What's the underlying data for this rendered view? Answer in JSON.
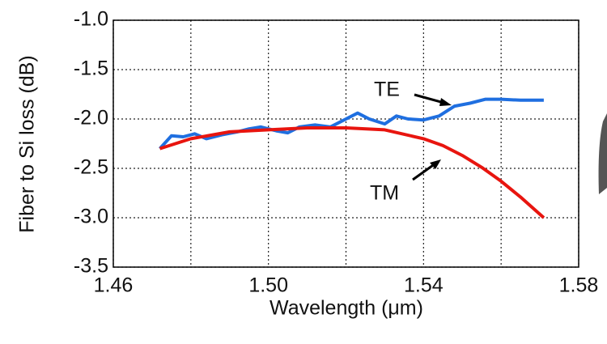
{
  "chart_data": {
    "type": "line",
    "xlabel": "Wavelength (μm)",
    "ylabel": "Fiber to Si loss (dB)",
    "xlim": [
      1.46,
      1.58
    ],
    "ylim": [
      -3.5,
      -1.0
    ],
    "xticks": [
      1.46,
      {
        "value": 1.5,
        "label": "1.50"
      },
      1.54,
      1.58
    ],
    "xgrid": [
      1.48,
      1.52,
      1.56
    ],
    "yticks": [
      {
        "value": -3.5,
        "label": "-3.5"
      },
      {
        "value": -3.0,
        "label": "-3.0"
      },
      {
        "value": -2.5,
        "label": "-2.5"
      },
      {
        "value": -2.0,
        "label": "-2.0"
      },
      {
        "value": -1.5,
        "label": "-1.5"
      },
      {
        "value": -1.0,
        "label": "-1.0"
      }
    ],
    "grid": true,
    "series": [
      {
        "name": "TE",
        "color": "#1f6fe0",
        "x": [
          1.472,
          1.475,
          1.478,
          1.481,
          1.484,
          1.488,
          1.492,
          1.495,
          1.498,
          1.502,
          1.505,
          1.508,
          1.512,
          1.516,
          1.52,
          1.523,
          1.526,
          1.53,
          1.533,
          1.536,
          1.54,
          1.544,
          1.548,
          1.552,
          1.556,
          1.56,
          1.565,
          1.571
        ],
        "values": [
          -2.3,
          -2.17,
          -2.18,
          -2.15,
          -2.2,
          -2.16,
          -2.13,
          -2.1,
          -2.08,
          -2.12,
          -2.14,
          -2.08,
          -2.06,
          -2.08,
          -2.0,
          -1.94,
          -2.0,
          -2.05,
          -1.97,
          -2.0,
          -2.01,
          -1.97,
          -1.87,
          -1.84,
          -1.8,
          -1.8,
          -1.81,
          -1.81
        ]
      },
      {
        "name": "TM",
        "color": "#e8150f",
        "x": [
          1.472,
          1.48,
          1.49,
          1.5,
          1.51,
          1.52,
          1.53,
          1.54,
          1.545,
          1.55,
          1.555,
          1.56,
          1.565,
          1.571
        ],
        "values": [
          -2.3,
          -2.2,
          -2.13,
          -2.11,
          -2.09,
          -2.09,
          -2.11,
          -2.2,
          -2.27,
          -2.37,
          -2.49,
          -2.63,
          -2.79,
          -3.0
        ]
      }
    ]
  }
}
